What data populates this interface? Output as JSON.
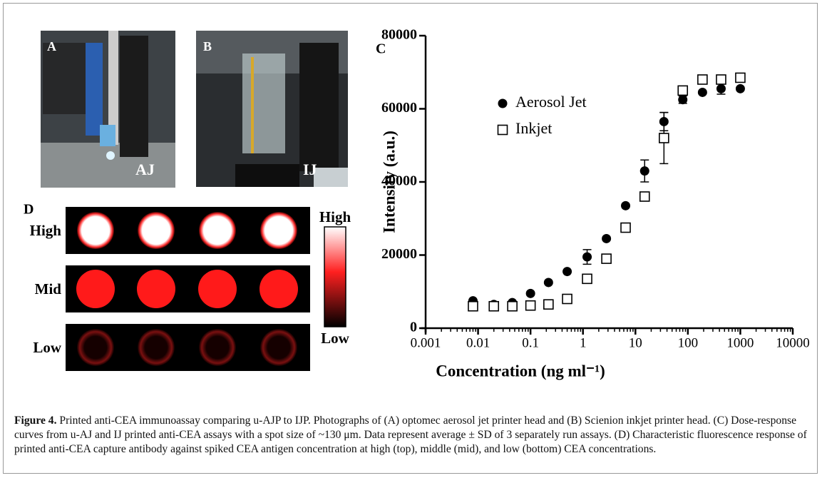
{
  "panel_labels": {
    "a": "A",
    "b": "B",
    "c": "C",
    "d": "D"
  },
  "photo_labels": {
    "a": "AJ",
    "b": "IJ"
  },
  "panel_d": {
    "rows": [
      "High",
      "Mid",
      "Low"
    ],
    "colorbar": {
      "top": "High",
      "bottom": "Low"
    }
  },
  "chart_data": {
    "type": "scatter",
    "xlabel": "Concentration (ng ml⁻¹)",
    "ylabel": "Intensity (a.u.)",
    "x": [
      0.008,
      0.02,
      0.045,
      0.1,
      0.22,
      0.5,
      1.2,
      2.8,
      6.5,
      15,
      35,
      80,
      190,
      430,
      1000
    ],
    "series": [
      {
        "name": "Aerosol Jet",
        "color": "#000000",
        "marker": "filled-circle",
        "values": [
          7500,
          6500,
          7000,
          9500,
          12500,
          15500,
          19500,
          24500,
          33500,
          43000,
          56500,
          62500,
          64500,
          65500,
          65500
        ],
        "errors": [
          null,
          null,
          null,
          null,
          null,
          null,
          2000,
          null,
          null,
          3000,
          2500,
          1000,
          null,
          1500,
          null
        ]
      },
      {
        "name": "Inkjet",
        "color": "#000000",
        "marker": "open-square",
        "values": [
          6000,
          6000,
          6000,
          6200,
          6500,
          8000,
          13500,
          19000,
          27500,
          36000,
          52000,
          65000,
          68000,
          68000,
          68500
        ],
        "errors": [
          null,
          null,
          null,
          null,
          null,
          null,
          null,
          null,
          null,
          null,
          7000,
          null,
          null,
          null,
          null
        ]
      }
    ],
    "xscale": "log",
    "xlim": [
      0.001,
      10000
    ],
    "xticks": [
      0.001,
      0.01,
      0.1,
      1,
      10,
      100,
      1000,
      10000
    ],
    "ylim": [
      0,
      80000
    ],
    "yticks": [
      0,
      20000,
      40000,
      60000,
      80000
    ],
    "legend": "upper left"
  },
  "caption": {
    "label": "Figure 4.",
    "text": "Printed anti-CEA immunoassay comparing u-AJP to IJP. Photographs of (A) optomec aerosol jet printer head and (B) Scienion inkjet printer head. (C) Dose-response curves from u-AJ and IJ printed anti-CEA assays with a spot size of ~130 μm. Data represent average ± SD of 3 separately run assays. (D) Characteristic fluorescence response of printed anti-CEA capture antibody against spiked CEA antigen concentration at high (top), middle (mid), and low (bottom) CEA concentrations."
  }
}
